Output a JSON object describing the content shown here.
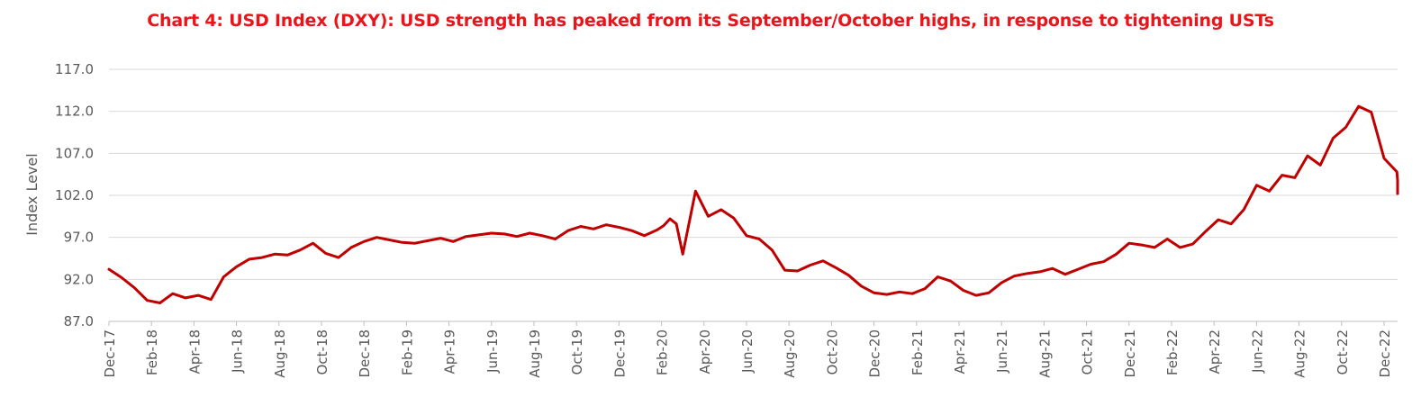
{
  "chart_data": {
    "type": "line",
    "title": "Chart 4: USD Index (DXY): USD strength has peaked from its September/October highs, in response to tightening USTs",
    "xlabel": "",
    "ylabel": "Index Level",
    "ylim": [
      87.0,
      117.0
    ],
    "yticks": [
      "87.0",
      "92.0",
      "97.0",
      "102.0",
      "107.0",
      "112.0",
      "117.0"
    ],
    "ytick_values": [
      87,
      92,
      97,
      102,
      107,
      112,
      117
    ],
    "xticks": [
      "Dec-17",
      "Feb-18",
      "Apr-18",
      "Jun-18",
      "Aug-18",
      "Oct-18",
      "Dec-18",
      "Feb-19",
      "Apr-19",
      "Jun-19",
      "Aug-19",
      "Oct-19",
      "Dec-19",
      "Feb-20",
      "Apr-20",
      "Jun-20",
      "Aug-20",
      "Oct-20",
      "Dec-20",
      "Feb-21",
      "Apr-21",
      "Jun-21",
      "Aug-21",
      "Oct-21",
      "Dec-21",
      "Feb-22",
      "Apr-22",
      "Jun-22",
      "Aug-22",
      "Oct-22",
      "Dec-22"
    ],
    "grid": true,
    "legend": "none",
    "line_color": "#c00000",
    "series": [
      {
        "name": "USD Index (DXY)",
        "x": [
          0,
          0.3,
          0.6,
          0.9,
          1.2,
          1.5,
          1.8,
          2.1,
          2.4,
          2.7,
          3.0,
          3.3,
          3.6,
          3.9,
          4.2,
          4.5,
          4.8,
          5.1,
          5.4,
          5.7,
          6.0,
          6.3,
          6.6,
          6.9,
          7.2,
          7.5,
          7.8,
          8.1,
          8.4,
          8.7,
          9.0,
          9.3,
          9.6,
          9.9,
          10.2,
          10.5,
          10.8,
          11.1,
          11.4,
          11.7,
          12.0,
          12.3,
          12.6,
          12.9,
          13.05,
          13.2,
          13.35,
          13.5,
          13.8,
          14.1,
          14.4,
          14.7,
          15.0,
          15.3,
          15.6,
          15.9,
          16.2,
          16.5,
          16.8,
          17.1,
          17.4,
          17.7,
          18.0,
          18.3,
          18.6,
          18.9,
          19.2,
          19.5,
          19.8,
          20.1,
          20.4,
          20.7,
          21.0,
          21.3,
          21.6,
          21.9,
          22.2,
          22.5,
          22.8,
          23.1,
          23.4,
          23.7,
          24.0,
          24.3,
          24.6,
          24.9,
          25.2,
          25.5,
          25.8,
          26.1,
          26.4,
          26.7,
          27.0,
          27.3,
          27.6,
          27.9,
          28.2,
          28.5,
          28.8,
          29.1,
          29.4,
          29.7,
          30.0,
          30.3,
          30.6,
          30.75
        ],
        "values": [
          93.2,
          92.2,
          91.0,
          89.5,
          89.2,
          90.3,
          89.8,
          90.1,
          89.6,
          92.3,
          93.5,
          94.4,
          94.6,
          95.0,
          94.9,
          95.5,
          96.3,
          95.1,
          94.6,
          95.8,
          96.5,
          97.0,
          96.7,
          96.4,
          96.3,
          96.6,
          96.9,
          96.5,
          97.1,
          97.3,
          97.5,
          97.4,
          97.1,
          97.5,
          97.2,
          96.8,
          97.8,
          98.3,
          98.0,
          98.5,
          98.2,
          97.8,
          97.2,
          97.9,
          98.4,
          99.2,
          98.6,
          95.0,
          102.5,
          99.5,
          100.3,
          99.3,
          97.2,
          96.8,
          95.5,
          93.1,
          93.0,
          93.7,
          94.2,
          93.4,
          92.5,
          91.2,
          90.4,
          90.2,
          90.5,
          90.3,
          90.9,
          92.3,
          91.8,
          90.7,
          90.1,
          90.4,
          91.6,
          92.4,
          92.7,
          92.9,
          93.3,
          92.6,
          93.2,
          93.8,
          94.1,
          95.0,
          96.3,
          96.1,
          95.8,
          96.8,
          95.8,
          96.2,
          97.7,
          99.1,
          98.6,
          100.3,
          103.2,
          102.5,
          104.4,
          104.1,
          106.7,
          105.6,
          108.8,
          110.1,
          112.6,
          111.9,
          106.4,
          104.8,
          103.8,
          102.2
        ]
      }
    ]
  }
}
